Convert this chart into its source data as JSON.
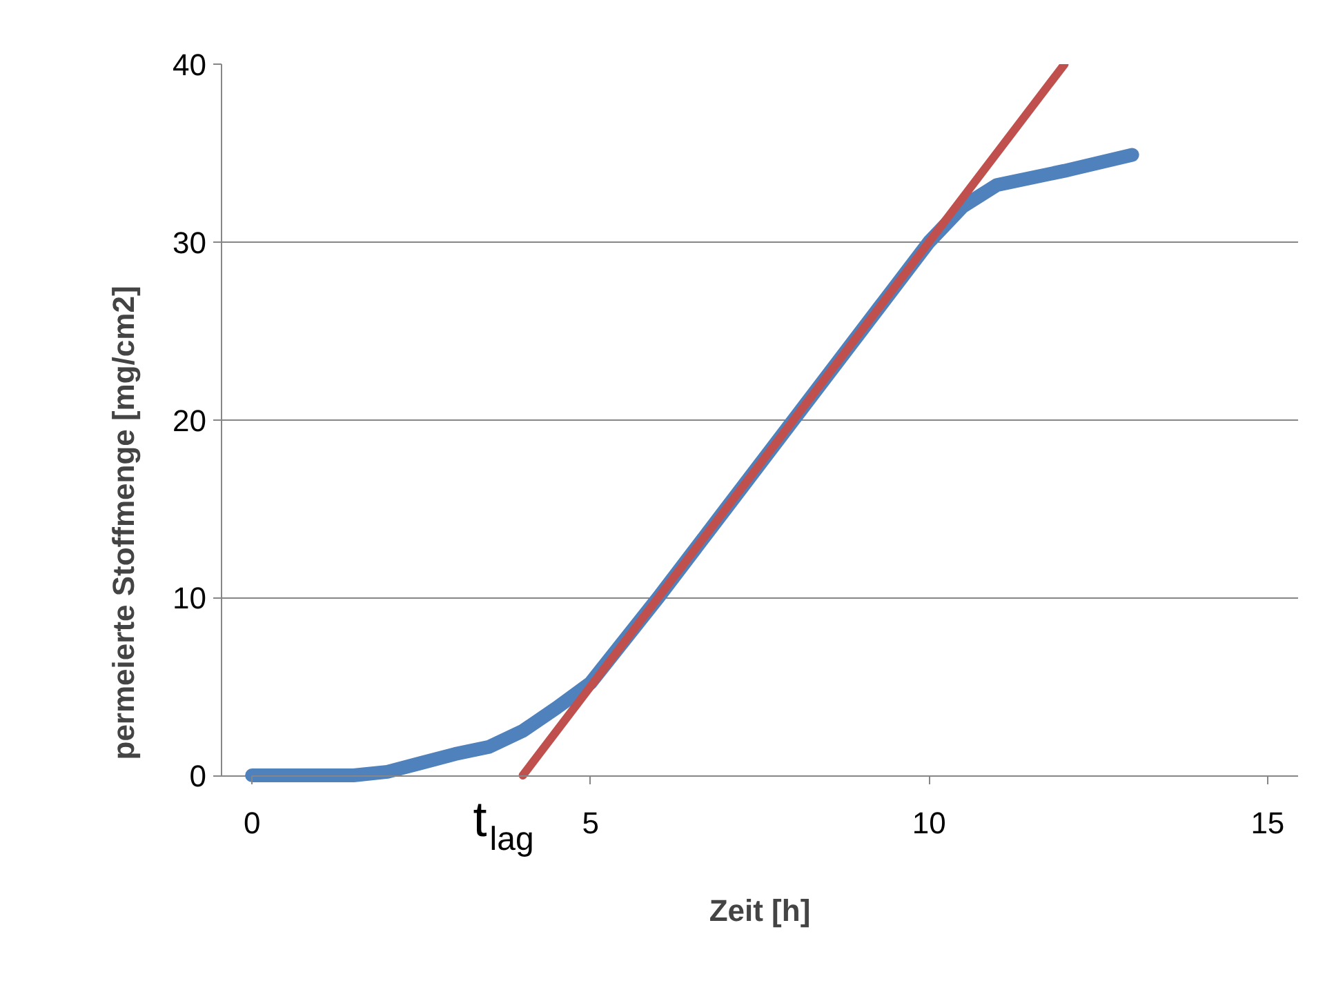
{
  "chart_data": {
    "type": "line",
    "xlabel": "Zeit [h]",
    "ylabel": "permeierte Stoffmenge [mg/cm2]",
    "xlim": [
      0,
      15
    ],
    "xticks": [
      0,
      5,
      10,
      15
    ],
    "ylim": [
      0,
      40
    ],
    "yticks": [
      0,
      10,
      20,
      30,
      40
    ],
    "grid": "y",
    "marker": "none",
    "line_style": "solid",
    "series": [
      {
        "color": "#4f81bd",
        "x": [
          0,
          1.5,
          2,
          2.5,
          3,
          3.5,
          4,
          4.5,
          5,
          6,
          7,
          8,
          9,
          10,
          10.5,
          11,
          12,
          13
        ],
        "values": [
          0,
          0,
          0.2,
          0.7,
          1.2,
          1.6,
          2.5,
          3.8,
          5.2,
          10,
          15,
          20,
          25,
          30,
          32,
          33.2,
          34,
          34.9
        ]
      },
      {
        "color": "#c0504d",
        "x": [
          4,
          12
        ],
        "values": [
          0,
          40
        ]
      }
    ],
    "annotations": [
      {
        "text": "t$_{lag}$",
        "x": 4,
        "y": 0
      }
    ]
  }
}
